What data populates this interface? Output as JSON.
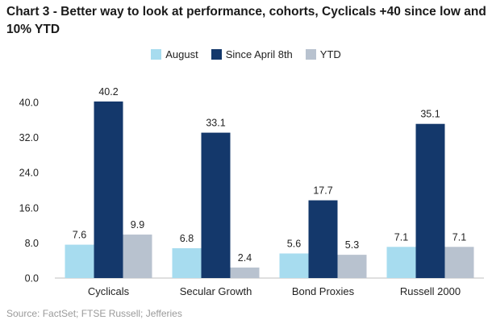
{
  "title": "Chart 3 - Better way to look at performance, cohorts, Cyclicals +40 since low and 10% YTD",
  "source": "Source: FactSet; FTSE Russell; Jefferies",
  "colors": {
    "August": "#a7dcef",
    "Since April 8th": "#14386b",
    "YTD": "#b8c2cf"
  },
  "chart_data": {
    "type": "bar",
    "title": "Chart 3 - Better way to look at performance, cohorts, Cyclicals +40 since low and 10% YTD",
    "xlabel": "",
    "ylabel": "",
    "categories": [
      "Cyclicals",
      "Secular Growth",
      "Bond Proxies",
      "Russell 2000"
    ],
    "series": [
      {
        "name": "August",
        "values": [
          7.6,
          6.8,
          5.6,
          7.1
        ],
        "labels": [
          "7.6",
          "6.8",
          "5.6",
          "7.1"
        ]
      },
      {
        "name": "Since April 8th",
        "values": [
          40.2,
          33.1,
          17.7,
          35.1
        ],
        "labels": [
          "40.2",
          "33.1",
          "17.7",
          "35.1"
        ]
      },
      {
        "name": "YTD",
        "values": [
          9.9,
          2.4,
          5.3,
          7.1
        ],
        "labels": [
          "9.9",
          "2.4",
          "5.3",
          "7.1"
        ]
      }
    ],
    "ylim": [
      0,
      40
    ],
    "yticks": [
      "0.0",
      "8.0",
      "16.0",
      "24.0",
      "32.0",
      "40.0"
    ],
    "ytick_values": [
      0,
      8,
      16,
      24,
      32,
      40
    ],
    "grid": false,
    "legend_position": "top-center"
  }
}
